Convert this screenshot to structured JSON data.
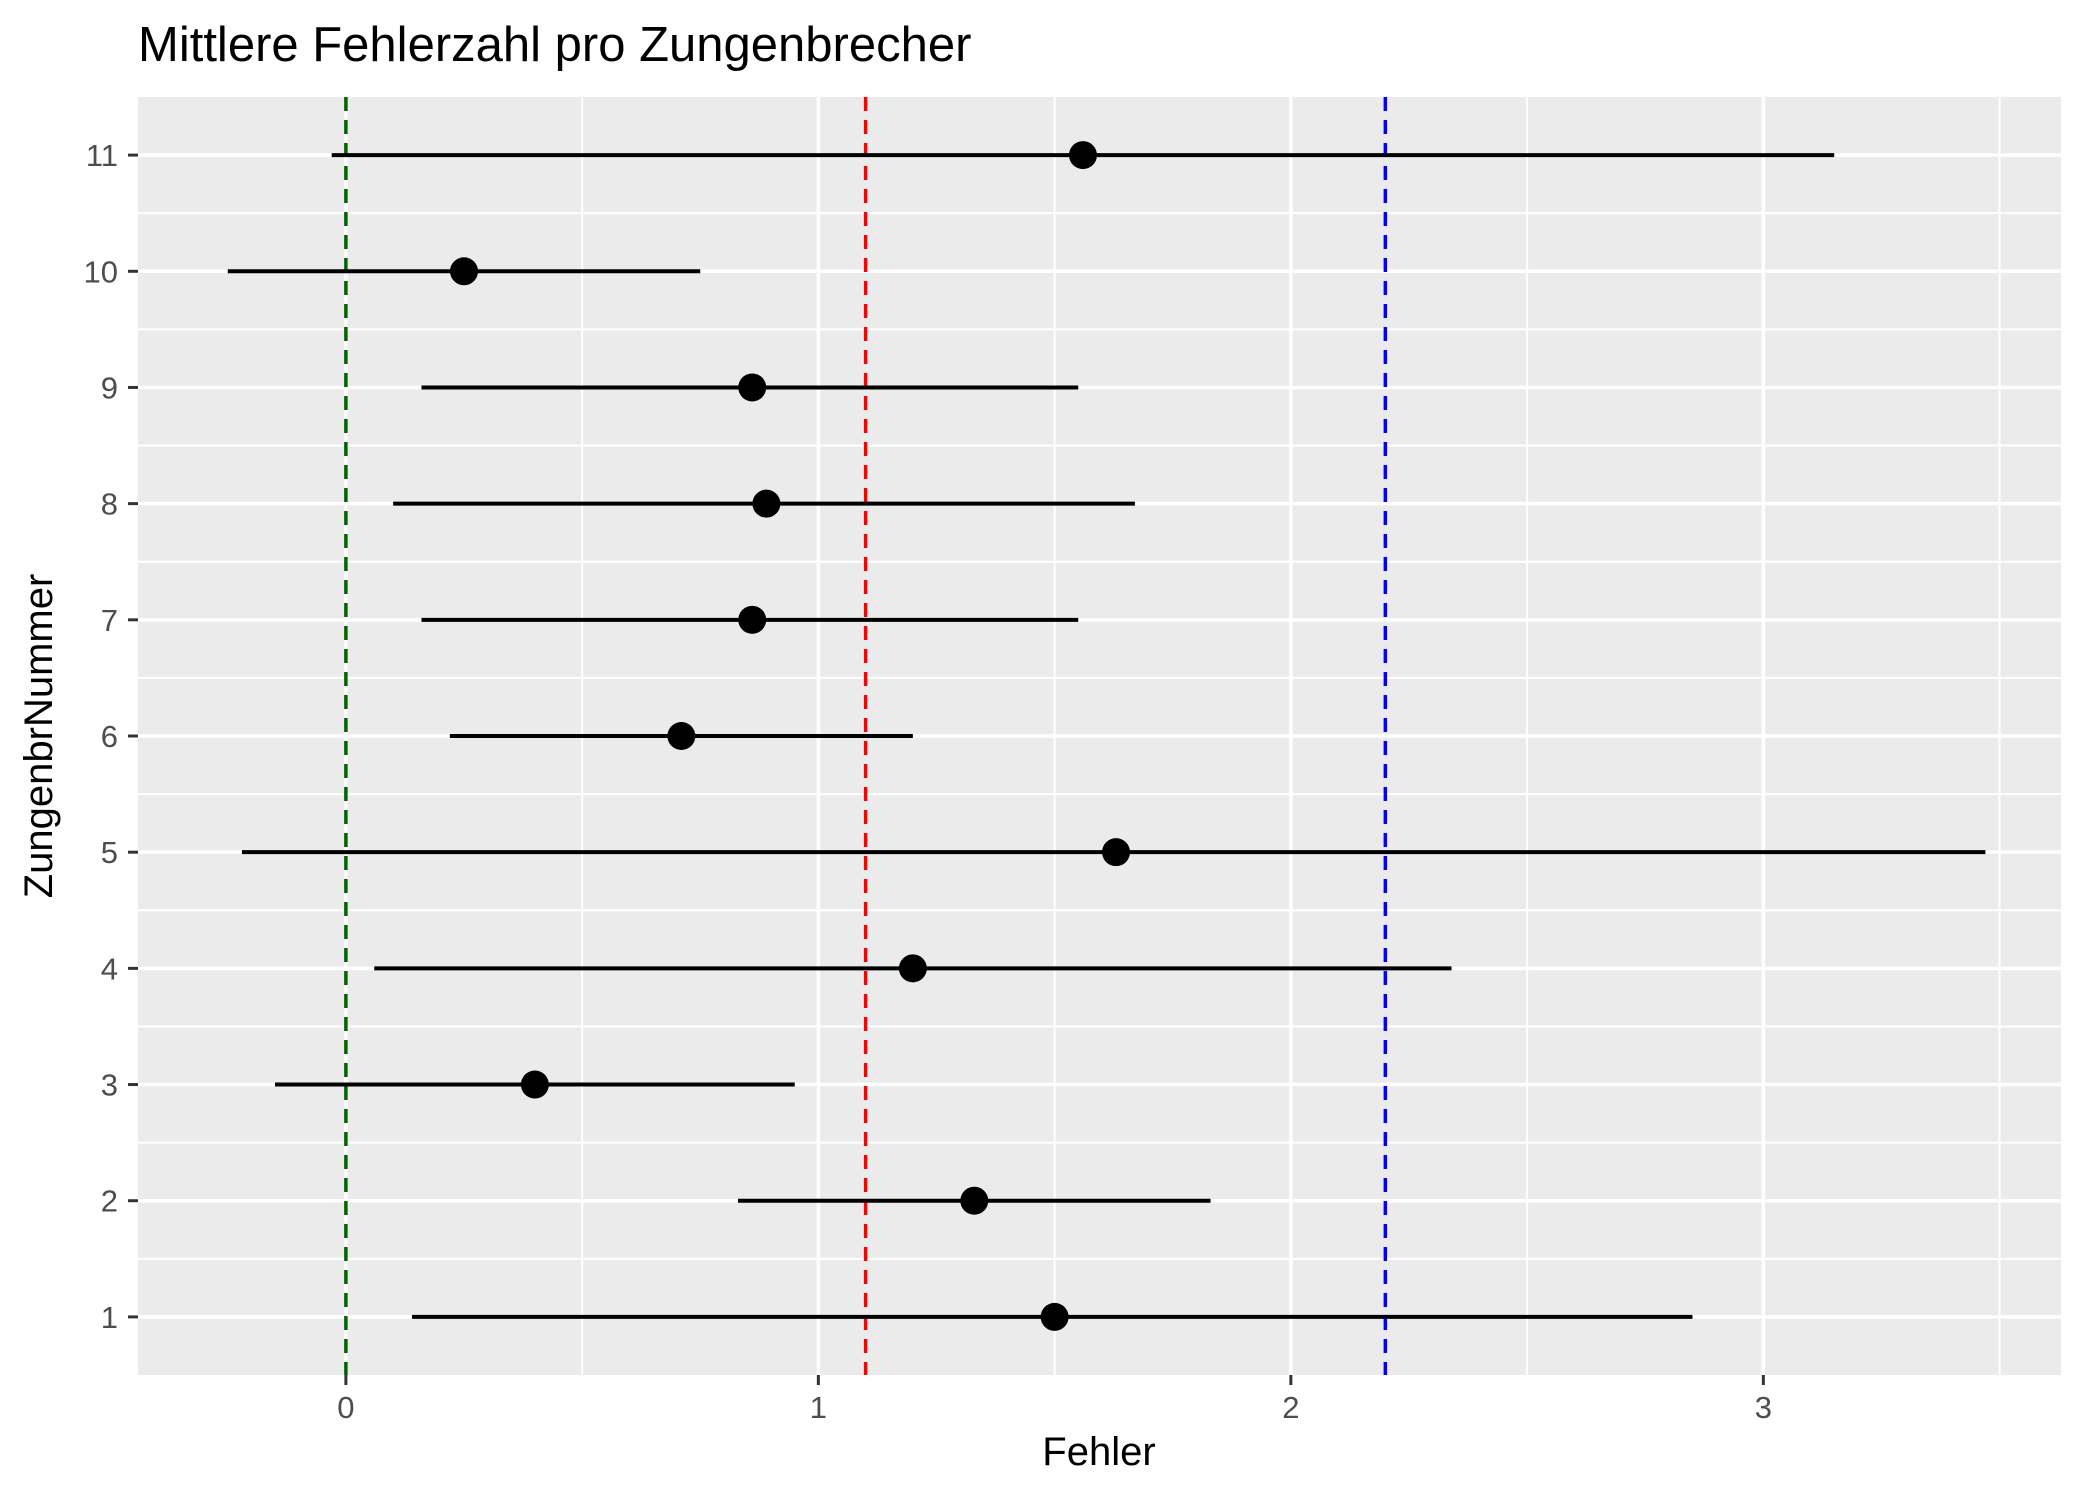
{
  "chart_data": {
    "type": "scatter",
    "title": "Mittlere Fehlerzahl pro Zungenbrecher",
    "xlabel": "Fehler",
    "ylabel": "ZungenbrNummer",
    "xlim": [
      -0.44,
      3.63
    ],
    "ylim": [
      0.5,
      11.5
    ],
    "x_ticks": [
      "0",
      "1",
      "2",
      "3"
    ],
    "y_ticks": [
      "1",
      "2",
      "3",
      "4",
      "5",
      "6",
      "7",
      "8",
      "9",
      "10",
      "11"
    ],
    "grid": true,
    "series": [
      {
        "points": [
          {
            "y": 1,
            "x": 1.5,
            "low": 0.14,
            "high": 2.85
          },
          {
            "y": 2,
            "x": 1.33,
            "low": 0.83,
            "high": 1.83
          },
          {
            "y": 3,
            "x": 0.4,
            "low": -0.15,
            "high": 0.95
          },
          {
            "y": 4,
            "x": 1.2,
            "low": 0.06,
            "high": 2.34
          },
          {
            "y": 5,
            "x": 1.63,
            "low": -0.22,
            "high": 3.47
          },
          {
            "y": 6,
            "x": 0.71,
            "low": 0.22,
            "high": 1.2
          },
          {
            "y": 7,
            "x": 0.86,
            "low": 0.16,
            "high": 1.55
          },
          {
            "y": 8,
            "x": 0.89,
            "low": 0.1,
            "high": 1.67
          },
          {
            "y": 9,
            "x": 0.86,
            "low": 0.16,
            "high": 1.55
          },
          {
            "y": 10,
            "x": 0.25,
            "low": -0.25,
            "high": 0.75
          },
          {
            "y": 11,
            "x": 1.56,
            "low": -0.03,
            "high": 3.15
          }
        ]
      }
    ],
    "reference_lines": [
      {
        "x": 0,
        "color": "#006400"
      },
      {
        "x": 1.1,
        "color": "#ff0000"
      },
      {
        "x": 2.2,
        "color": "#0000ff"
      }
    ],
    "colors": {
      "panel": "#ebebeb",
      "grid": "#ffffff",
      "point": "#000000",
      "tick": "#333333"
    }
  }
}
